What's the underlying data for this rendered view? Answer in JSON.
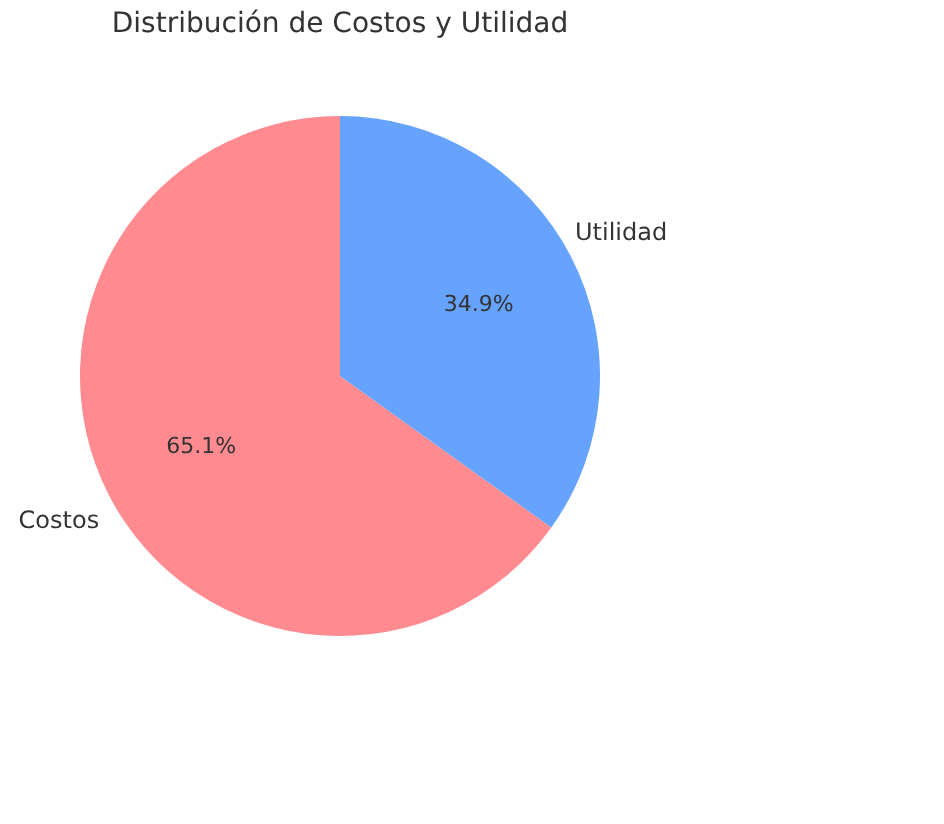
{
  "chart_data": {
    "type": "pie",
    "title": "Distribución de Costos y Utilidad",
    "categories": [
      "Costos",
      "Utilidad"
    ],
    "values": [
      65.1,
      34.9
    ],
    "colors": [
      "#ff8a8f",
      "#66a3ff"
    ],
    "value_labels": [
      "65.1%",
      "34.9%"
    ],
    "legend": false
  }
}
